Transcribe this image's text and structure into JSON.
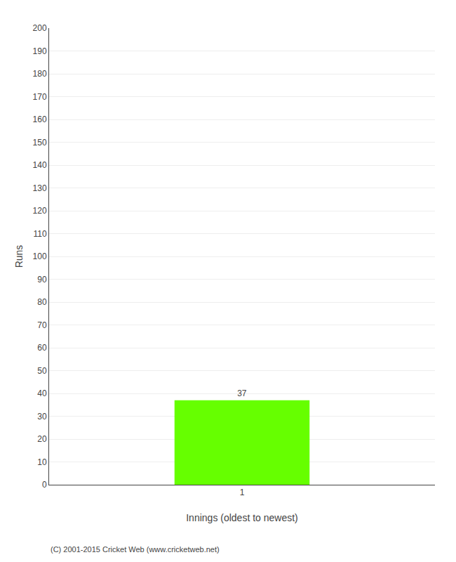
{
  "chart_data": {
    "type": "bar",
    "xlabel": "Innings (oldest to newest)",
    "ylabel": "Runs",
    "x": [
      1
    ],
    "values": [
      37
    ],
    "color": "#66ff00",
    "xlim": [
      0,
      2
    ],
    "xticks": [
      1
    ],
    "ylim": [
      0,
      200
    ],
    "yticks": [
      0,
      10,
      20,
      30,
      40,
      50,
      60,
      70,
      80,
      90,
      100,
      110,
      120,
      130,
      140,
      150,
      160,
      170,
      180,
      190,
      200
    ],
    "grid": "y",
    "data_labels": true,
    "annotations": [
      "(C) 2001-2015 Cricket Web (www.cricketweb.net)"
    ]
  }
}
